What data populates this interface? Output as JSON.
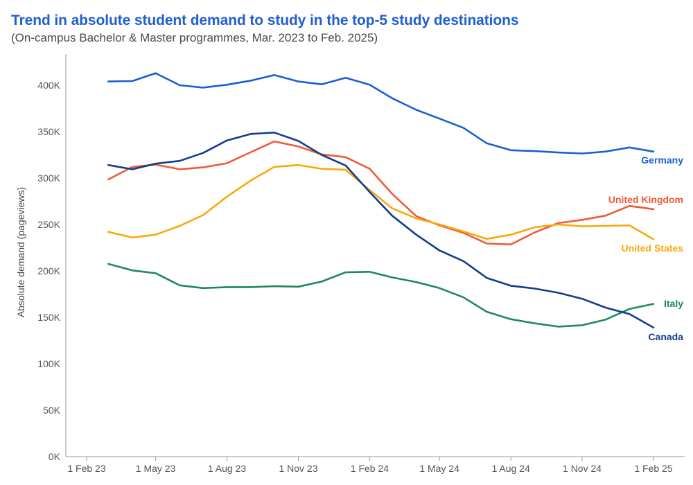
{
  "chart_data": {
    "type": "line",
    "title": "Trend in absolute student demand to study in the top-5 study destinations",
    "subtitle": "(On-campus Bachelor & Master programmes, Mar. 2023 to Feb. 2025)",
    "ylabel": "Absolute demand (pageviews)",
    "xlabel": "",
    "ylim": [
      0,
      420000
    ],
    "yticks": [
      0,
      50000,
      100000,
      150000,
      200000,
      250000,
      300000,
      350000,
      400000
    ],
    "ytick_labels": [
      "0K",
      "50K",
      "100K",
      "150K",
      "200K",
      "250K",
      "300K",
      "350K",
      "400K"
    ],
    "xlim": [
      "2023-02-01",
      "2025-02-15"
    ],
    "xticks": [
      "2023-02-01",
      "2023-05-01",
      "2023-08-01",
      "2023-11-01",
      "2024-02-01",
      "2024-05-01",
      "2024-08-01",
      "2024-11-01",
      "2025-02-01"
    ],
    "xtick_labels": [
      "1 Feb 23",
      "1 May 23",
      "1 Aug 23",
      "1 Nov 23",
      "1 Feb 24",
      "1 May 24",
      "1 Aug 24",
      "1 Nov 24",
      "1 Feb 25"
    ],
    "grid": false,
    "legend": "direct labels at line ends",
    "x": [
      "2023-03-01",
      "2023-04-01",
      "2023-05-01",
      "2023-06-01",
      "2023-07-01",
      "2023-08-01",
      "2023-09-01",
      "2023-10-01",
      "2023-11-01",
      "2023-12-01",
      "2024-01-01",
      "2024-02-01",
      "2024-03-01",
      "2024-04-01",
      "2024-05-01",
      "2024-06-01",
      "2024-07-01",
      "2024-08-01",
      "2024-09-01",
      "2024-10-01",
      "2024-11-01",
      "2024-12-01",
      "2025-01-01",
      "2025-02-01"
    ],
    "series": [
      {
        "name": "Germany",
        "color": "#1a5fd0",
        "values": [
          404000,
          404500,
          413000,
          400000,
          397500,
          400500,
          405000,
          411000,
          404000,
          401000,
          408000,
          400500,
          386000,
          373500,
          364000,
          354000,
          337500,
          330000,
          329000,
          327500,
          326500,
          328500,
          333000,
          328500
        ]
      },
      {
        "name": "United Kingdom",
        "color": "#f05a35",
        "values": [
          298500,
          312000,
          314500,
          309500,
          311500,
          316000,
          328000,
          339500,
          334000,
          325500,
          322500,
          310000,
          283000,
          259000,
          249000,
          241000,
          229500,
          228500,
          241500,
          251500,
          255000,
          259500,
          270000,
          266500
        ]
      },
      {
        "name": "United States",
        "color": "#f7a90c",
        "values": [
          242000,
          236000,
          239000,
          248500,
          260000,
          280000,
          297500,
          312000,
          314000,
          310000,
          309000,
          287000,
          267500,
          256500,
          250000,
          242500,
          234500,
          239000,
          247000,
          250000,
          248000,
          248500,
          249000,
          234000
        ]
      },
      {
        "name": "Italy",
        "color": "#1d8a58",
        "values": [
          207500,
          200500,
          197500,
          184500,
          181500,
          182500,
          182500,
          183500,
          183000,
          188500,
          198500,
          199000,
          193000,
          188000,
          181500,
          171500,
          156000,
          148000,
          143500,
          140000,
          141500,
          147500,
          159000,
          164500
        ]
      },
      {
        "name": "Canada",
        "color": "#123d8e",
        "values": [
          314000,
          309500,
          315500,
          318500,
          327000,
          340500,
          347500,
          349000,
          340000,
          325000,
          313500,
          285000,
          259500,
          239000,
          222000,
          210500,
          192500,
          184000,
          181000,
          176500,
          170000,
          160500,
          153500,
          139000
        ]
      }
    ]
  }
}
